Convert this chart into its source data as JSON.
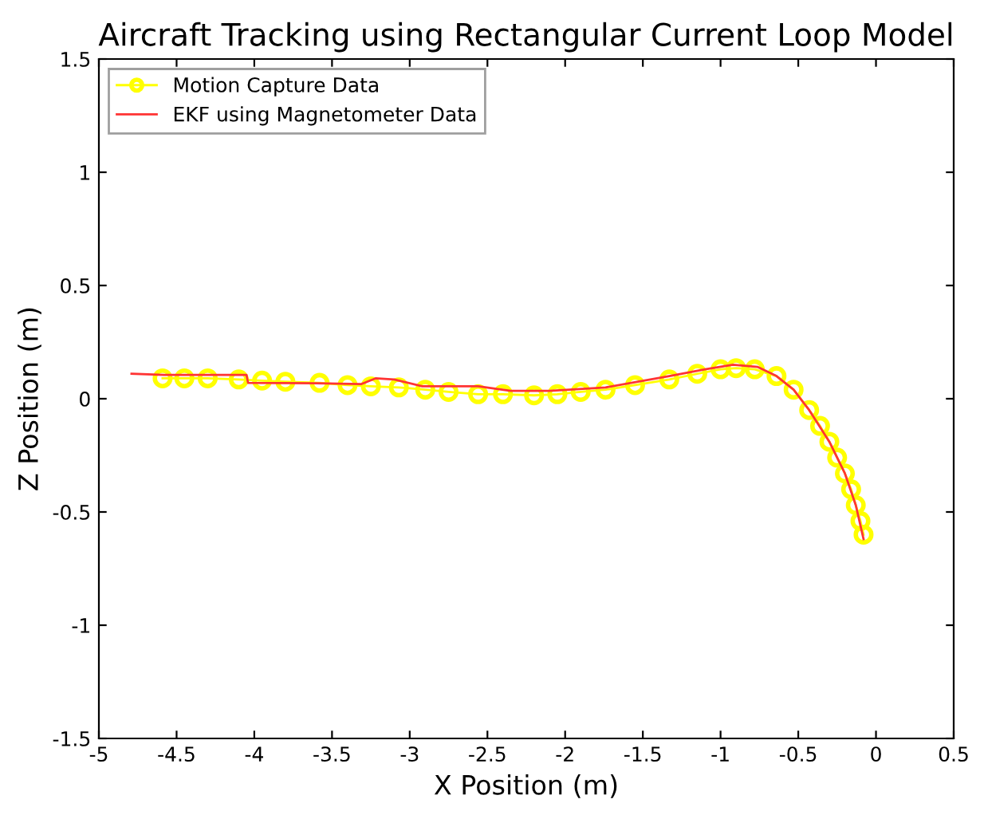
{
  "chart_data": {
    "type": "line",
    "title": "Aircraft Tracking using Rectangular Current Loop Model",
    "xlabel": "X Position (m)",
    "ylabel": "Z Position (m)",
    "xlim": [
      -5,
      0.5
    ],
    "ylim": [
      -1.5,
      1.5
    ],
    "xticks": [
      -5,
      -4.5,
      -4,
      -3.5,
      -3,
      -2.5,
      -2,
      -1.5,
      -1,
      -0.5,
      0,
      0.5
    ],
    "yticks": [
      -1.5,
      -1,
      -0.5,
      0,
      0.5,
      1,
      1.5
    ],
    "grid": false,
    "legend": "top left",
    "series": [
      {
        "name": "Motion Capture Data",
        "color": "#ffff00",
        "marker": "circle",
        "x": [
          -4.59,
          -4.45,
          -4.3,
          -4.1,
          -3.95,
          -3.8,
          -3.58,
          -3.4,
          -3.25,
          -3.07,
          -2.9,
          -2.75,
          -2.56,
          -2.4,
          -2.2,
          -2.05,
          -1.9,
          -1.74,
          -1.55,
          -1.33,
          -1.15,
          -1.0,
          -0.9,
          -0.78,
          -0.64,
          -0.53,
          -0.43,
          -0.36,
          -0.3,
          -0.25,
          -0.2,
          -0.16,
          -0.13,
          -0.1,
          -0.08
        ],
        "values": [
          0.09,
          0.09,
          0.09,
          0.085,
          0.08,
          0.075,
          0.07,
          0.06,
          0.055,
          0.05,
          0.04,
          0.03,
          0.02,
          0.02,
          0.015,
          0.02,
          0.03,
          0.04,
          0.06,
          0.085,
          0.11,
          0.13,
          0.135,
          0.13,
          0.1,
          0.04,
          -0.05,
          -0.12,
          -0.19,
          -0.26,
          -0.33,
          -0.4,
          -0.47,
          -0.54,
          -0.6
        ]
      },
      {
        "name": "EKF using Magnetometer Data",
        "color": "#ff3333",
        "marker": "none",
        "x": [
          -4.79,
          -4.58,
          -4.05,
          -4.04,
          -3.6,
          -3.31,
          -3.22,
          -3.1,
          -2.92,
          -2.56,
          -2.35,
          -2.1,
          -1.74,
          -1.33,
          -1.1,
          -0.92,
          -0.76,
          -0.64,
          -0.53,
          -0.43,
          -0.3,
          -0.2,
          -0.13,
          -0.08
        ],
        "values": [
          0.11,
          0.105,
          0.105,
          0.07,
          0.068,
          0.065,
          0.09,
          0.085,
          0.055,
          0.055,
          0.035,
          0.035,
          0.05,
          0.1,
          0.13,
          0.15,
          0.14,
          0.1,
          0.04,
          -0.05,
          -0.19,
          -0.33,
          -0.47,
          -0.62
        ]
      }
    ]
  }
}
